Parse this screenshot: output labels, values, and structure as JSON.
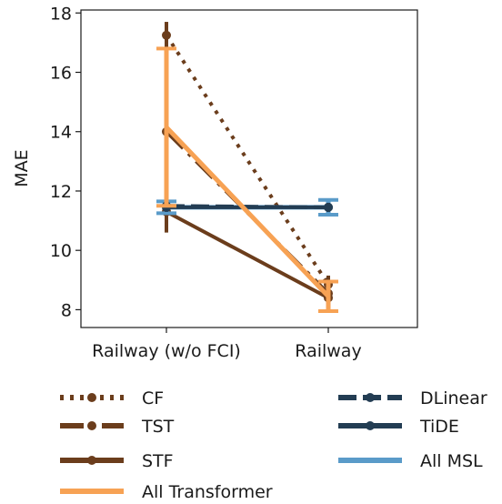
{
  "chart_data": {
    "type": "line",
    "categories": [
      "Railway (w/o FCI)",
      "Railway"
    ],
    "ylabel": "MAE",
    "xlabel": "",
    "ylim": [
      7.4,
      18.1
    ],
    "yticks": [
      8,
      10,
      12,
      14,
      16,
      18
    ],
    "grid": false,
    "legend_position": "below",
    "series": [
      {
        "name": "CF",
        "values": [
          17.25,
          8.85
        ],
        "err": [
          0.45,
          0.3
        ],
        "color": "#6b3d1c",
        "style": "dotted",
        "marker": true,
        "legend_col": 0,
        "legend_row": 0
      },
      {
        "name": "TST",
        "values": [
          14.0,
          8.55
        ],
        "err": [
          1.3,
          0.45
        ],
        "color": "#6b3d1c",
        "style": "dashdot",
        "marker": true,
        "legend_col": 0,
        "legend_row": 1
      },
      {
        "name": "STF",
        "values": [
          11.3,
          8.4
        ],
        "err": [
          0.7,
          0.35
        ],
        "color": "#6b3d1c",
        "style": "solid",
        "marker": true,
        "legend_col": 0,
        "legend_row": 2
      },
      {
        "name": "All Transformer",
        "values": [
          14.15,
          8.45
        ],
        "err": [
          2.65,
          0.5
        ],
        "color": "#f7a254",
        "style": "solid",
        "marker": false,
        "legend_col": 0,
        "legend_row": 3
      },
      {
        "name": "DLinear",
        "values": [
          11.5,
          11.45
        ],
        "err": [
          0.15,
          0.15
        ],
        "color": "#233d53",
        "style": "dashed",
        "marker": true,
        "legend_col": 1,
        "legend_row": 0
      },
      {
        "name": "TiDE",
        "values": [
          11.45,
          11.45
        ],
        "err": [
          0.15,
          0.15
        ],
        "color": "#233d53",
        "style": "solid",
        "marker": true,
        "legend_col": 1,
        "legend_row": 1
      },
      {
        "name": "All MSL",
        "values": [
          11.45,
          11.45
        ],
        "err": [
          0.2,
          0.25
        ],
        "color": "#5a9bc9",
        "style": "solid",
        "marker": false,
        "legend_col": 1,
        "legend_row": 2
      }
    ]
  }
}
